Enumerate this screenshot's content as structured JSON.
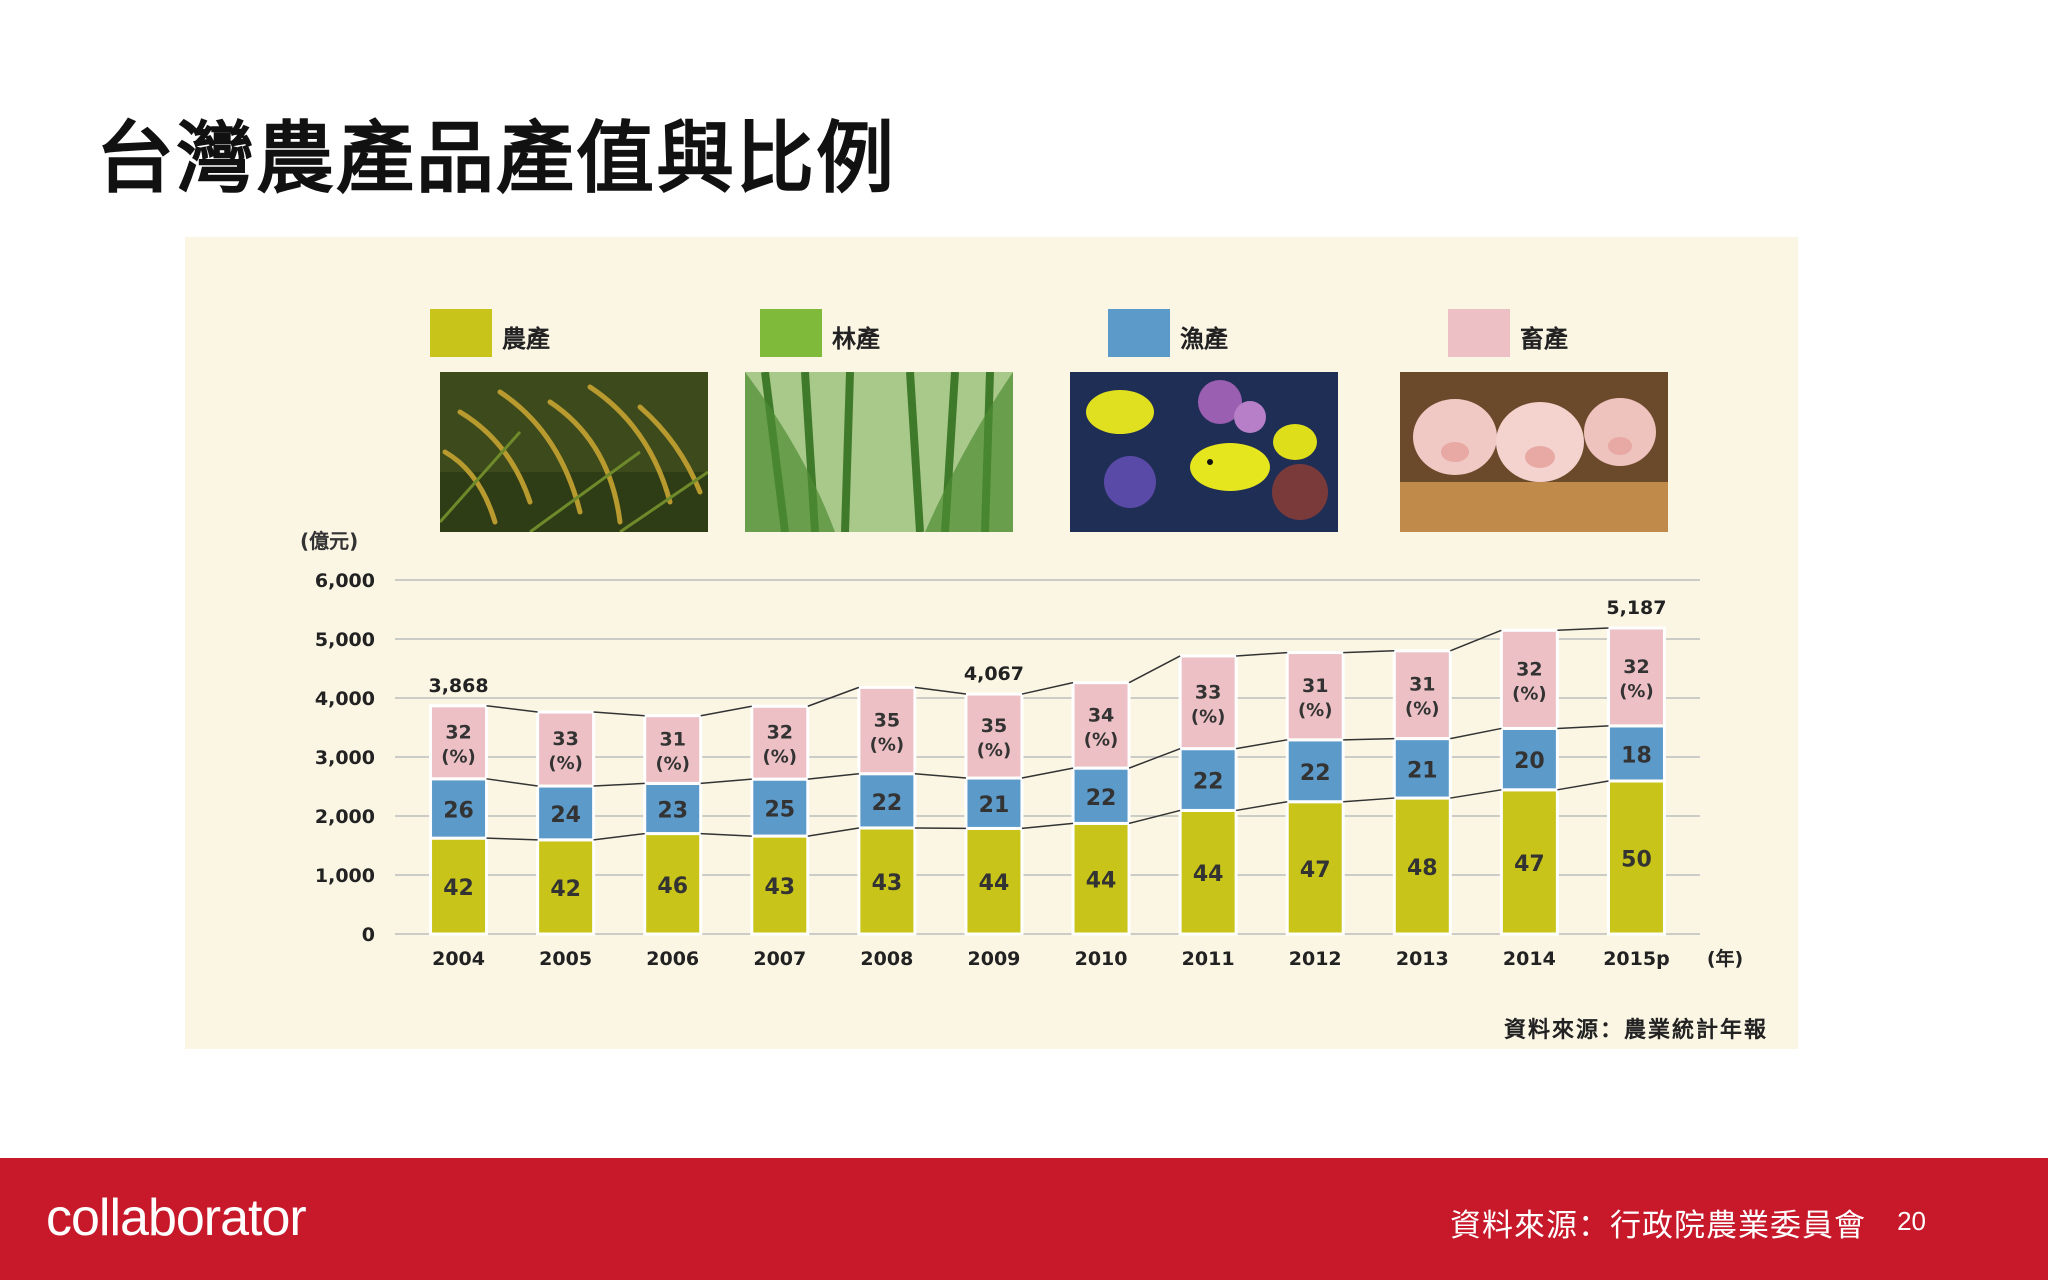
{
  "slide": {
    "title": "台灣農產品產值與比例"
  },
  "legend": [
    {
      "label": "農產",
      "color": "#c8c41a",
      "icon": "rice-photo"
    },
    {
      "label": "林產",
      "color": "#7fba3a",
      "icon": "bamboo-forest-photo"
    },
    {
      "label": "漁產",
      "color": "#5b9ac9",
      "icon": "fish-reef-photo"
    },
    {
      "label": "畜產",
      "color": "#ecc0c4",
      "icon": "pigs-photo"
    }
  ],
  "chart_data": {
    "type": "bar",
    "stacked": true,
    "ylabel": "(億元)",
    "xlabel": "(年)",
    "ylim": [
      0,
      6000
    ],
    "yticks": [
      "0",
      "1,000",
      "2,000",
      "3,000",
      "4,000",
      "5,000",
      "6,000"
    ],
    "categories": [
      "2004",
      "2005",
      "2006",
      "2007",
      "2008",
      "2009",
      "2010",
      "2011",
      "2012",
      "2013",
      "2014",
      "2015p"
    ],
    "totals": [
      3868,
      3800,
      3700,
      3860,
      4180,
      4067,
      4260,
      4760,
      4770,
      4800,
      5200,
      5187
    ],
    "total_labels": {
      "2004": "3,868",
      "2009": "4,067",
      "2015p": "5,187"
    },
    "percent_unit": "(%)",
    "series": [
      {
        "name": "農產",
        "percent": [
          42,
          42,
          46,
          43,
          43,
          44,
          44,
          44,
          47,
          48,
          47,
          50
        ]
      },
      {
        "name": "漁產",
        "percent": [
          26,
          24,
          23,
          25,
          22,
          21,
          22,
          22,
          22,
          21,
          20,
          18
        ]
      },
      {
        "name": "畜產",
        "percent": [
          32,
          33,
          31,
          32,
          35,
          35,
          34,
          33,
          31,
          31,
          32,
          32
        ]
      }
    ],
    "colors": {
      "agri": "#c8c41a",
      "fish": "#5b9ac9",
      "livestock": "#ecc0c4",
      "grid": "#bdbdbd",
      "line": "#333333"
    }
  },
  "source_note": "資料來源：農業統計年報",
  "footer": {
    "logo": "collaborator",
    "source": "資料來源：行政院農業委員會",
    "page_number": "20"
  }
}
